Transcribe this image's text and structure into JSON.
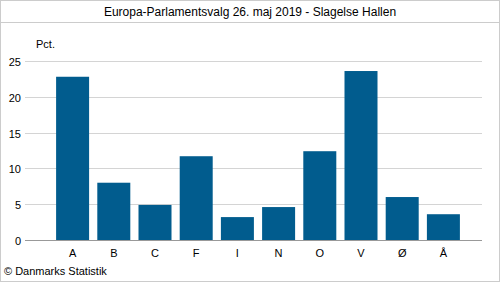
{
  "chart_data": {
    "type": "bar",
    "title": "Europa-Parlamentsvalg 26. maj 2019 - Slagelse Hallen",
    "y_label": "Pct.",
    "footer": "© Danmarks Statistik",
    "categories": [
      "A",
      "B",
      "C",
      "F",
      "I",
      "N",
      "O",
      "V",
      "Ø",
      "Å"
    ],
    "values": [
      22.8,
      8.0,
      4.9,
      11.7,
      3.2,
      4.6,
      12.4,
      23.6,
      6.0,
      3.6
    ],
    "color": "#015c8e",
    "ylim": [
      0,
      25
    ],
    "yticks": [
      0,
      5,
      10,
      15,
      20,
      25
    ],
    "grid": true
  }
}
